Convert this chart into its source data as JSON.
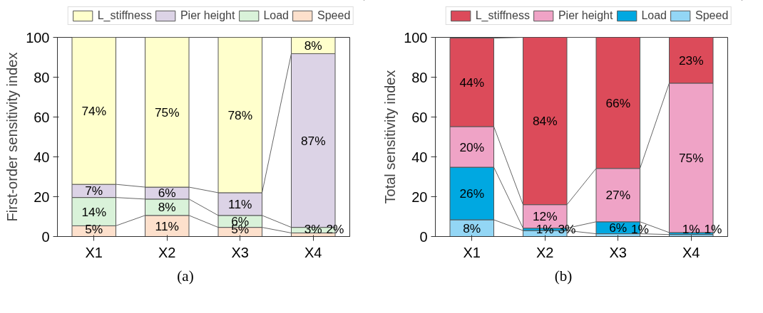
{
  "chart_data": [
    {
      "type": "bar",
      "stacked": true,
      "ylabel": "First-order sensitivity index",
      "categories": [
        "X1",
        "X2",
        "X3",
        "X4"
      ],
      "ylim": [
        0,
        100
      ],
      "yticks": [
        0,
        20,
        40,
        60,
        80,
        100
      ],
      "grid": false,
      "legend": "top",
      "annotations": [
        "(a)"
      ],
      "series": [
        {
          "name": "Speed",
          "color": "#fde0cc",
          "values": [
            5.4,
            10.6,
            4.6,
            1.8
          ],
          "value_labels": [
            "5%",
            "11%",
            "5%",
            "2%"
          ]
        },
        {
          "name": "Load",
          "color": "#d9f2d9",
          "values": [
            14.2,
            8.2,
            6.0,
            2.8
          ],
          "value_labels": [
            "14%",
            "8%",
            "6%",
            "3%"
          ]
        },
        {
          "name": "Pier height",
          "color": "#dcd3e6",
          "values": [
            6.6,
            6.0,
            11.4,
            87.2
          ],
          "value_labels": [
            "7%",
            "6%",
            "11%",
            "87%"
          ]
        },
        {
          "name": "L_stiffness",
          "color": "#ffffcc",
          "values": [
            73.8,
            75.2,
            78.0,
            8.2
          ],
          "value_labels": [
            "74%",
            "75%",
            "78%",
            "8%"
          ]
        }
      ]
    },
    {
      "type": "bar",
      "stacked": true,
      "ylabel": "Total sensitivity index",
      "categories": [
        "X1",
        "X2",
        "X3",
        "X4"
      ],
      "ylim": [
        0,
        100
      ],
      "yticks": [
        0,
        20,
        40,
        60,
        80,
        100
      ],
      "grid": false,
      "legend": "top",
      "annotations": [
        "(b)"
      ],
      "series": [
        {
          "name": "Speed",
          "color": "#93d6f5",
          "values": [
            8.4,
            3.0,
            1.4,
            1.0
          ],
          "value_labels": [
            "8%",
            "3%",
            "1%",
            "1%"
          ]
        },
        {
          "name": "Load",
          "color": "#00a8e1",
          "values": [
            26.4,
            1.2,
            6.0,
            1.0
          ],
          "value_labels": [
            "26%",
            "1%",
            "6%",
            "1%"
          ]
        },
        {
          "name": "Pier height",
          "color": "#efa3c6",
          "values": [
            20.4,
            11.8,
            26.8,
            75.0
          ],
          "value_labels": [
            "20%",
            "12%",
            "27%",
            "75%"
          ]
        },
        {
          "name": "L_stiffness",
          "color": "#dc4b5a",
          "values": [
            44.4,
            84.0,
            65.8,
            23.0
          ],
          "value_labels": [
            "44%",
            "84%",
            "66%",
            "23%"
          ]
        }
      ]
    }
  ]
}
